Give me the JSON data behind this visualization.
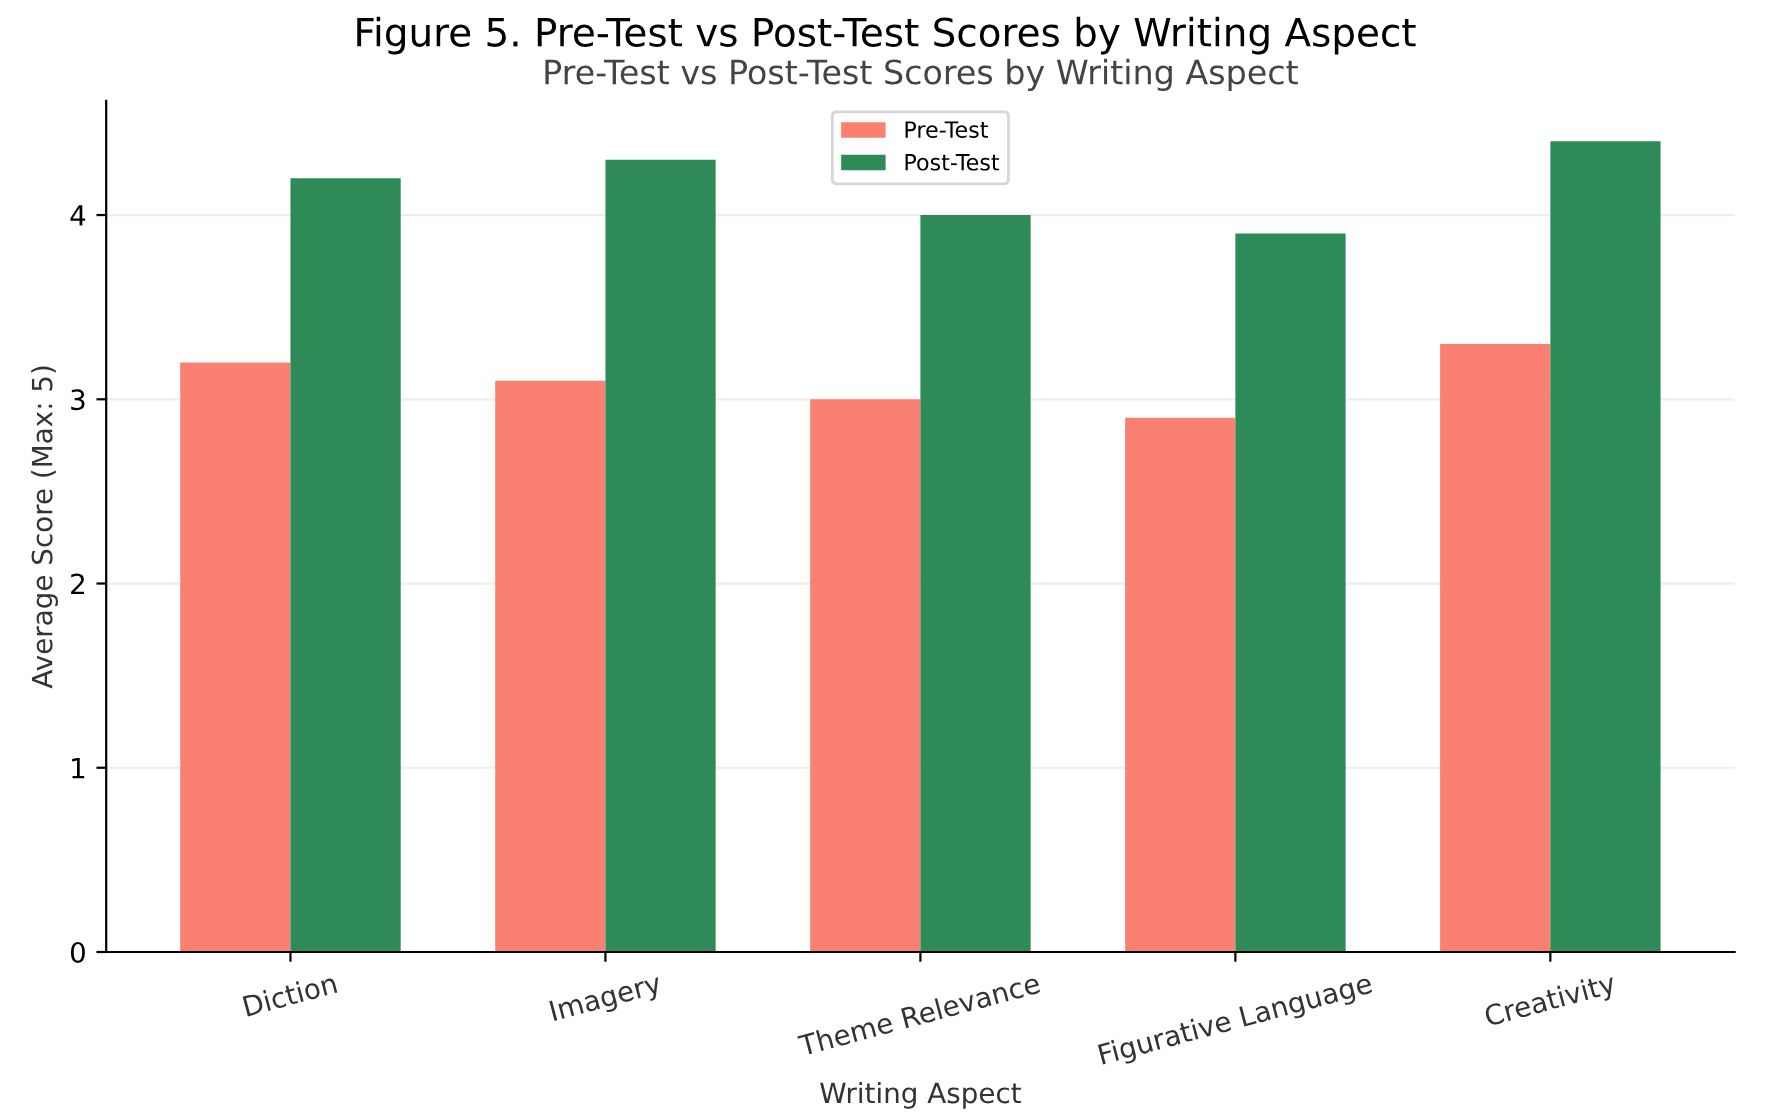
{
  "chart_data": {
    "type": "bar",
    "title": "Figure 5. Pre-Test vs Post-Test Scores by Writing Aspect",
    "subtitle": "Pre-Test vs Post-Test Scores by Writing Aspect",
    "xlabel": "Writing Aspect",
    "ylabel": "Average Score (Max: 5)",
    "categories": [
      "Diction",
      "Imagery",
      "Theme Relevance",
      "Figurative Language",
      "Creativity"
    ],
    "series": [
      {
        "name": "Pre-Test",
        "color": "#fa8072",
        "values": [
          3.2,
          3.1,
          3.0,
          2.9,
          3.3
        ]
      },
      {
        "name": "Post-Test",
        "color": "#2e8b57",
        "values": [
          4.2,
          4.3,
          4.0,
          3.9,
          4.4
        ]
      }
    ],
    "ylim": [
      0,
      4.62
    ],
    "yticks": [
      0,
      1,
      2,
      3,
      4
    ],
    "grid": "y",
    "legend": "top"
  }
}
